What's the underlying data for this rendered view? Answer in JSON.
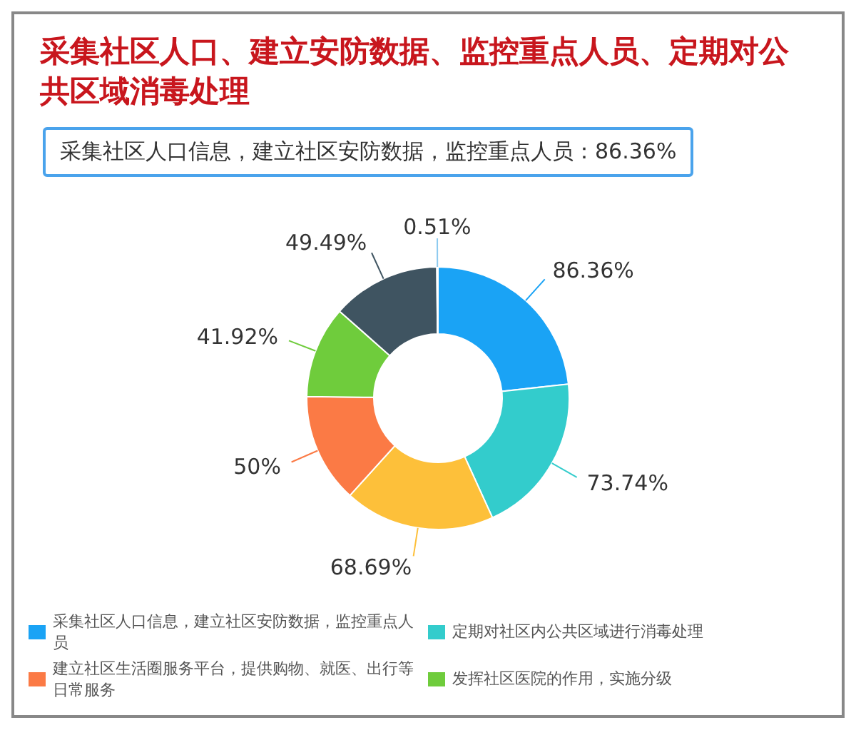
{
  "chart_data": {
    "type": "donut",
    "title": "采集社区人口、建立安防数据、监控重点人员、定期对公共区域消毒处理",
    "categories": [
      "采集社区人口信息，建立社区安防数据，监控重点人员",
      "定期对社区内公共区域进行消毒处理",
      null,
      "建立社区生活圈服务平台，提供购物、就医、出行等日常服务",
      "发挥社区医院的作用，实施分级",
      null,
      null
    ],
    "values": [
      86.36,
      73.74,
      68.69,
      50,
      41.92,
      49.49,
      0.51
    ],
    "value_labels": [
      "86.36%",
      "73.74%",
      "68.69%",
      "50%",
      "41.92%",
      "49.49%",
      "0.51%"
    ],
    "colors": [
      "#1aa3f5",
      "#33cccc",
      "#fdc03a",
      "#fb7a45",
      "#6fcc3c",
      "#3f5461",
      "#8ccaf0"
    ],
    "annotations": [
      "采集社区人口信息，建立社区安防数据，监控重点人员：86.36%"
    ],
    "legend": "bottom"
  }
}
